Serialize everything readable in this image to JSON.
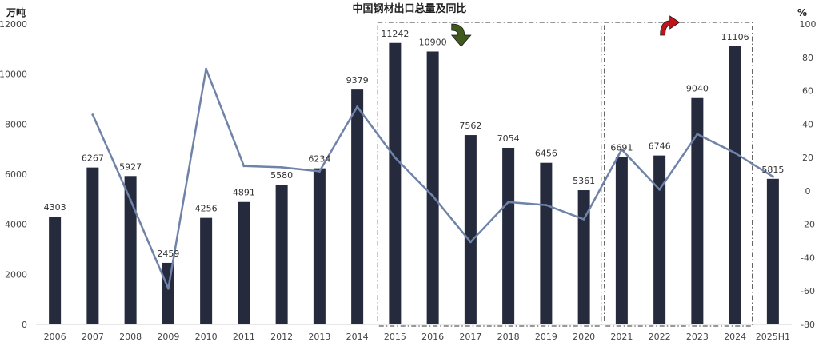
{
  "chart_data": {
    "type": "bar",
    "title": "中国钢材出口总量及同比",
    "left_unit": "万吨",
    "right_unit": "%",
    "categories": [
      "2006",
      "2007",
      "2008",
      "2009",
      "2010",
      "2011",
      "2012",
      "2013",
      "2014",
      "2015",
      "2016",
      "2017",
      "2018",
      "2019",
      "2020",
      "2021",
      "2022",
      "2023",
      "2024",
      "2025H1"
    ],
    "series": [
      {
        "kind": "bar",
        "axis": "left",
        "values": [
          4303,
          6267,
          5927,
          2459,
          4256,
          4891,
          5580,
          6234,
          9379,
          11242,
          10900,
          7562,
          7054,
          6456,
          5361,
          6691,
          6746,
          9040,
          11106,
          5815
        ]
      },
      {
        "kind": "line",
        "axis": "right",
        "values": [
          null,
          45.6,
          -5.4,
          -58.5,
          73.1,
          14.9,
          14.1,
          11.7,
          50.4,
          19.9,
          -3.0,
          -30.6,
          -6.7,
          -8.5,
          -17.0,
          24.8,
          0.8,
          34.0,
          22.7,
          8.5
        ]
      }
    ],
    "y_left": {
      "min": 0,
      "max": 12000,
      "ticks": [
        "0",
        "2000",
        "4000",
        "6000",
        "8000",
        "10000",
        "12000"
      ]
    },
    "y_right": {
      "min": -80,
      "max": 100,
      "ticks": [
        "-80",
        "-60",
        "-40",
        "-20",
        "0",
        "20",
        "40",
        "60",
        "80",
        "100"
      ]
    },
    "grid": false,
    "legend": "none",
    "annotations": [
      {
        "type": "dash-dot box",
        "from": "2015",
        "to": "2020"
      },
      {
        "type": "dash-dot box",
        "from": "2021",
        "to": "2024"
      },
      {
        "type": "arrow",
        "direction": "down",
        "color": "#3f5a1c",
        "near": "2016-2017"
      },
      {
        "type": "arrow",
        "direction": "up",
        "color": "#c0141b",
        "near": "2022"
      }
    ],
    "colors": {
      "bar": "#252b3d",
      "line": "#6f82a8",
      "box": "#333333"
    }
  }
}
